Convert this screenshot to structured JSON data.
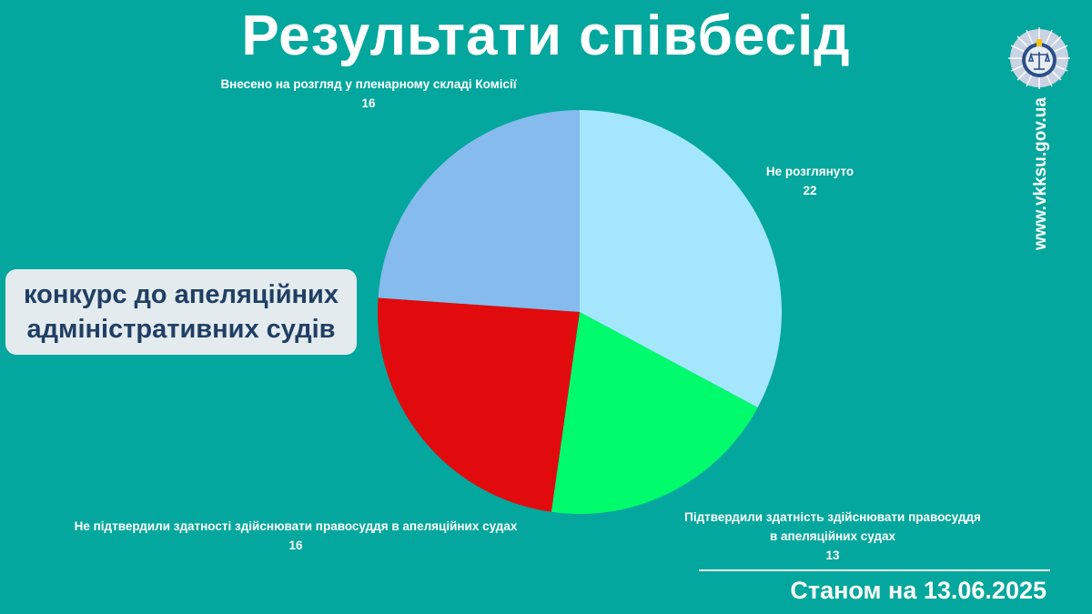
{
  "title": "Результати співбесід",
  "subtitle_lines": [
    "конкурс до апеляційних",
    "адміністративних судів"
  ],
  "website": "www.vkksu.gov.ua",
  "date_label": "Станом на 13.06.2025",
  "chart_data": {
    "type": "pie",
    "start_angle_deg": 0,
    "direction": "clockwise",
    "slices": [
      {
        "label": "Не розглянуто",
        "value": 22,
        "color": "#a4e6fc"
      },
      {
        "label": "Підтвердили здатність здійснювати правосуддя в апеляційних судах",
        "label_lines": [
          "Підтвердили здатність здійснювати правосуддя",
          "в апеляційних судах"
        ],
        "value": 13,
        "color": "#00fb6d"
      },
      {
        "label": "Не підтвердили здатності здійснювати правосуддя в апеляційних судах",
        "value": 16,
        "color": "#e10b0e"
      },
      {
        "label": "Внесено на розгляд у пленарному складі Комісії",
        "value": 16,
        "color": "#86bbee"
      }
    ]
  }
}
